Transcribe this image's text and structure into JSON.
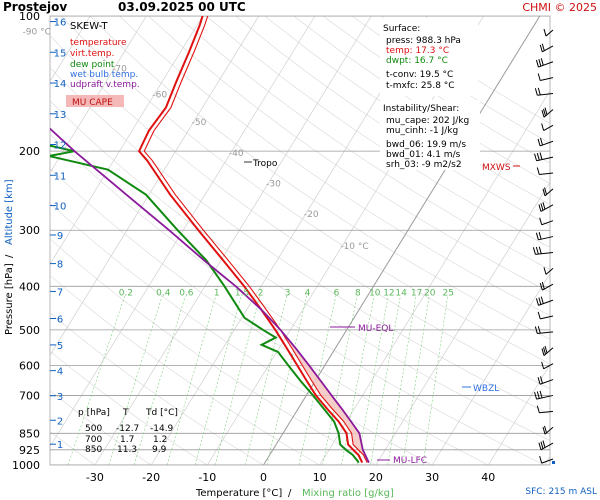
{
  "header": {
    "station": "Prostejov",
    "datetime": "03.09.2025 00 UTC",
    "copyright": "CHMI © 2025"
  },
  "legend": {
    "title": "SKEW-T",
    "items": [
      {
        "label": "temperature",
        "color": "#e01010"
      },
      {
        "label": "virt.temp.",
        "color": "#e01010"
      },
      {
        "label": "dew point",
        "color": "#108a10"
      },
      {
        "label": "wet bulb temp.",
        "color": "#3070e0"
      },
      {
        "label": "udpraft v.temp.",
        "color": "#8a1a9a"
      }
    ],
    "cape_label": "MU CAPE",
    "cape_color": "#f4b8b8"
  },
  "surface": {
    "heading": "Surface:",
    "press": "press: 988.3 hPa",
    "temp": "temp: 17.3 °C",
    "dwpt": "dwpt: 16.7 °C",
    "tconv": "t-conv: 19.5 °C",
    "tmxfc": "t-mxfc: 25.8 °C"
  },
  "instability": {
    "heading": "Instability/Shear:",
    "mu_cape": "mu_cape: 202 J/kg",
    "mu_cinh": "mu_cinh: -1 J/kg",
    "bwd_06": "bwd_06: 19.9 m/s",
    "bwd_01": "bwd_01: 4.1 m/s",
    "srh_03": "srh_03: -9 m2/s2"
  },
  "table": {
    "headers": [
      "p [hPa]",
      "T",
      "Td [°C]"
    ],
    "rows": [
      [
        "500",
        "-12.7",
        "-14.9"
      ],
      [
        "700",
        "1.7",
        "1.2"
      ],
      [
        "850",
        "11.3",
        "9.9"
      ]
    ]
  },
  "annotations": {
    "tropo": "Tropo",
    "mu_eql": "MU-EQL",
    "mu_lfc": "MU-LFC",
    "mxws": "MXWS",
    "wbzl": "WBZL",
    "sfc": "SFC: 215 m ASL"
  },
  "axes": {
    "xlabel_temp": "Temperature [°C]",
    "xlabel_sep": "/",
    "xlabel_mix": "Mixing ratio [g/kg]",
    "ylabel_pressure": "Pressure [hPa]",
    "ylabel_sep": "/",
    "ylabel_altitude": "Altitude [km]"
  },
  "colors": {
    "temperature": "#e01010",
    "dewpoint": "#108a10",
    "parcel": "#8a1a9a",
    "mixing": "#7ad07a",
    "altitude": "#1060c0",
    "isotherm_label": "#999999",
    "cape_fill": "#f4c4c0"
  },
  "chart_data": {
    "type": "line",
    "title": "SKEW-T",
    "xlabel": "Temperature [°C] / Mixing ratio [g/kg]",
    "ylabel": "Pressure [hPa] / Altitude [km]",
    "pressure_ticks": [
      100,
      200,
      300,
      400,
      500,
      600,
      700,
      850,
      925,
      1000
    ],
    "temperature_ticks": [
      -30,
      -20,
      -10,
      0,
      10,
      20,
      30,
      40
    ],
    "altitude_ticks_km": [
      1,
      2,
      3,
      4,
      5,
      6,
      7,
      8,
      9,
      10,
      11,
      12,
      13,
      14,
      15,
      16
    ],
    "isotherm_labels": [
      "-90 °C",
      "-70",
      "-60",
      "-50",
      "-40",
      "-30",
      "-20",
      "-10 °C"
    ],
    "isotherm_label_values": [
      -90,
      -70,
      -60,
      -50,
      -40,
      -30,
      -20,
      -10
    ],
    "mixing_ratio_labels": [
      "0.2",
      "0.4",
      "0.6",
      "1",
      "1.5",
      "2",
      "3",
      "4",
      "6",
      "8",
      "10",
      "12",
      "14",
      "17",
      "20",
      "25"
    ],
    "mixing_ratio_values": [
      0.2,
      0.4,
      0.6,
      1,
      1.5,
      2,
      3,
      4,
      6,
      8,
      10,
      12,
      14,
      17,
      20,
      25
    ],
    "surface_pressure": 988.3,
    "tropopause_pressure": 200,
    "series": [
      {
        "name": "temperature",
        "points": [
          [
            988,
            17.3
          ],
          [
            950,
            15.8
          ],
          [
            925,
            14.3
          ],
          [
            900,
            12.8
          ],
          [
            850,
            11.3
          ],
          [
            800,
            8.6
          ],
          [
            750,
            5.2
          ],
          [
            700,
            1.7
          ],
          [
            650,
            -1.5
          ],
          [
            600,
            -4.9
          ],
          [
            550,
            -8.6
          ],
          [
            500,
            -12.7
          ],
          [
            450,
            -17.5
          ],
          [
            400,
            -23.0
          ],
          [
            350,
            -29.6
          ],
          [
            300,
            -37.3
          ],
          [
            250,
            -46.2
          ],
          [
            210,
            -54.0
          ],
          [
            200,
            -56.5
          ],
          [
            180,
            -57.0
          ],
          [
            160,
            -56.5
          ],
          [
            140,
            -57.5
          ],
          [
            120,
            -58.5
          ],
          [
            105,
            -59.5
          ],
          [
            100,
            -60.0
          ]
        ]
      },
      {
        "name": "dew point",
        "points": [
          [
            988,
            16.7
          ],
          [
            950,
            14.8
          ],
          [
            925,
            13.0
          ],
          [
            900,
            11.4
          ],
          [
            850,
            9.9
          ],
          [
            800,
            7.8
          ],
          [
            750,
            4.6
          ],
          [
            700,
            1.2
          ],
          [
            650,
            -2.6
          ],
          [
            600,
            -6.5
          ],
          [
            560,
            -9.8
          ],
          [
            540,
            -13.5
          ],
          [
            520,
            -11.8
          ],
          [
            500,
            -14.9
          ],
          [
            470,
            -19.5
          ],
          [
            450,
            -21.4
          ],
          [
            400,
            -26.5
          ],
          [
            350,
            -32.6
          ],
          [
            300,
            -41.0
          ],
          [
            250,
            -50.5
          ],
          [
            220,
            -60.0
          ],
          [
            205,
            -72.0
          ],
          [
            200,
            -68.0
          ],
          [
            190,
            -77.0
          ],
          [
            175,
            -80.0
          ],
          [
            160,
            -82.0
          ],
          [
            140,
            -84.0
          ],
          [
            120,
            -86.0
          ],
          [
            105,
            -87.0
          ],
          [
            100,
            -88.0
          ]
        ]
      },
      {
        "name": "updraft v.temp.",
        "points": [
          [
            988,
            18.5
          ],
          [
            925,
            16.0
          ],
          [
            850,
            13.6
          ],
          [
            800,
            10.8
          ],
          [
            750,
            7.8
          ],
          [
            700,
            4.5
          ],
          [
            650,
            1.0
          ],
          [
            600,
            -2.8
          ],
          [
            550,
            -7.0
          ],
          [
            500,
            -11.8
          ],
          [
            450,
            -17.5
          ],
          [
            400,
            -24.5
          ],
          [
            350,
            -33.0
          ],
          [
            300,
            -42.5
          ],
          [
            250,
            -54.0
          ],
          [
            200,
            -68.0
          ],
          [
            150,
            -85.0
          ],
          [
            120,
            -97.0
          ],
          [
            100,
            -107.0
          ]
        ]
      }
    ]
  }
}
